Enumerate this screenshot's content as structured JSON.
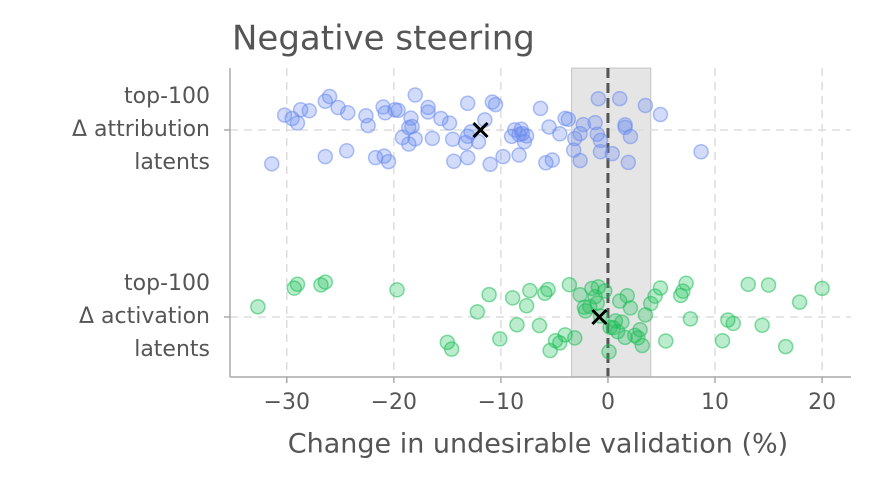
{
  "chart_data": {
    "type": "strip",
    "title": "Negative steering",
    "x_label": "Change in undesirable validation (%)",
    "categories": [
      "top-100\nΔ attribution\nlatents",
      "top-100\nΔ activation\nlatents"
    ],
    "series": [
      {
        "name": "top-100\nΔ attribution\nlatents",
        "color": "#6b8cf0",
        "values": [
          -31.4,
          -30.2,
          -29.0,
          -27.9,
          -26.0,
          -25.2,
          -24.4,
          -26.4,
          -22.4,
          -21.0,
          -21.7,
          -20.8,
          -20.5,
          -19.9,
          -18.4,
          -18.3,
          -18.0,
          -16.8,
          -16.4,
          -14.8,
          -13.3,
          -13.1,
          -12.8,
          -11.5,
          -11.0,
          -10.8,
          -9.0,
          -8.7,
          -8.3,
          -8.0,
          -6.3,
          -5.8,
          -3.7,
          -3.1,
          -2.6,
          -2.3,
          -1.0,
          -0.9,
          -0.7,
          0.4,
          1.9,
          2.1,
          4.9,
          8.7,
          -29.5,
          -26.4,
          -24.3,
          -22.6,
          -20.9,
          -18.6,
          -16.8,
          -14.4,
          -13.1,
          -10.5,
          -9.8,
          -8.1,
          -7.6,
          -5.5,
          -5.2,
          -3.2,
          -2.6,
          1.1,
          1.6,
          3.5,
          -28.7,
          -18.6,
          -15.6,
          -4.5,
          1.6,
          -19.6,
          -19.2,
          -18.0,
          -14.5,
          -13.1,
          -12.1,
          -8.3,
          -7.8,
          -4.0,
          -1.2,
          -0.7
        ],
        "mean": -11.9
      },
      {
        "name": "top-100\nΔ activation\nlatents",
        "color": "#1fbf5a",
        "values": [
          -32.7,
          -29.3,
          -29.0,
          -26.8,
          -26.4,
          -19.7,
          -15.0,
          -14.6,
          -12.2,
          -11.1,
          -10.1,
          -8.9,
          -8.5,
          -7.6,
          -7.3,
          -6.4,
          -5.9,
          -5.6,
          -5.4,
          -4.9,
          -4.5,
          -4.0,
          -3.6,
          -3.1,
          -2.6,
          -2.1,
          -1.7,
          -1.2,
          -0.9,
          -0.7,
          -0.3,
          0.2,
          0.7,
          1.1,
          1.6,
          2.1,
          2.5,
          3.0,
          3.5,
          4.0,
          4.4,
          4.9,
          5.4,
          6.8,
          7.0,
          7.3,
          7.7,
          10.7,
          11.2,
          11.7,
          13.1,
          14.4,
          15.0,
          16.6,
          17.9,
          20.0,
          -1.0,
          0.5,
          1.3,
          2.8,
          -2.2,
          0.9,
          1.8,
          3.2,
          -1.5,
          0.1
        ],
        "mean": -0.8
      }
    ],
    "shaded_region": [
      -3.4,
      4.0
    ],
    "reference_line": 0,
    "xlim": [
      -35.3,
      22.7
    ],
    "xticks": [
      {
        "value": -30,
        "label": "−30"
      },
      {
        "value": -20,
        "label": "−20"
      },
      {
        "value": -10,
        "label": "−10"
      },
      0,
      10,
      20
    ],
    "grid": true
  }
}
